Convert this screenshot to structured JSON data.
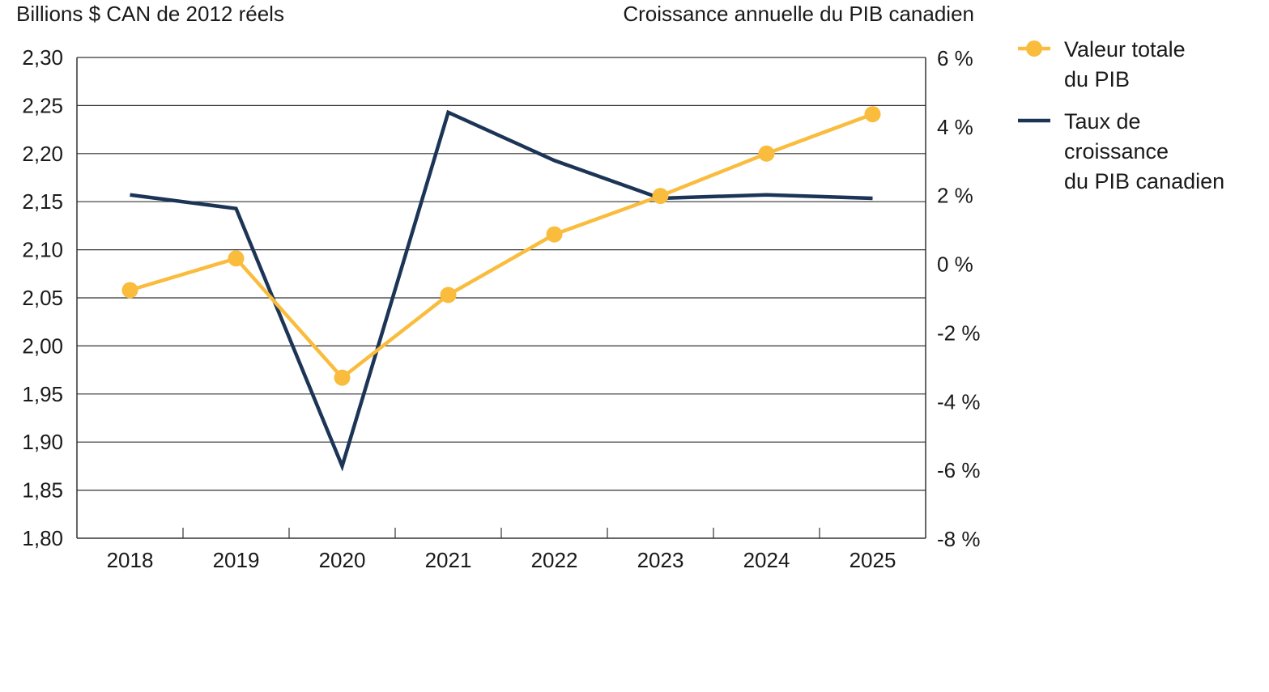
{
  "chart_data": {
    "type": "line",
    "left_axis_title": "Billions $ CAN de 2012 réels",
    "right_axis_title": "Croissance annuelle du PIB canadien",
    "categories": [
      "2018",
      "2019",
      "2020",
      "2021",
      "2022",
      "2023",
      "2024",
      "2025"
    ],
    "left_ylim": [
      1.8,
      2.3
    ],
    "left_ticks": [
      "1,80",
      "1,85",
      "1,90",
      "1,95",
      "2,00",
      "2,05",
      "2,10",
      "2,15",
      "2,20",
      "2,25",
      "2,30"
    ],
    "right_ylim": [
      -8,
      6
    ],
    "right_ticks": [
      "-8 %",
      "-6 %",
      "-4 %",
      "-2 %",
      "0 %",
      "2 %",
      "4 %",
      "6 %"
    ],
    "grid": true,
    "legend_position": "right",
    "series": [
      {
        "name": "Valeur totale du PIB",
        "legend_lines": [
          "Valeur totale",
          "du PIB"
        ],
        "axis": "left",
        "color": "#F9BC3D",
        "markers": true,
        "values": [
          2.058,
          2.091,
          1.967,
          2.053,
          2.116,
          2.156,
          2.2,
          2.241
        ]
      },
      {
        "name": "Taux de croissance du PIB canadien",
        "legend_lines": [
          "Taux de",
          "croissance",
          "du PIB canadien"
        ],
        "axis": "right",
        "color": "#1C3557",
        "markers": false,
        "values": [
          2.0,
          1.6,
          -5.9,
          4.4,
          3.0,
          1.9,
          2.0,
          1.9
        ]
      }
    ]
  }
}
